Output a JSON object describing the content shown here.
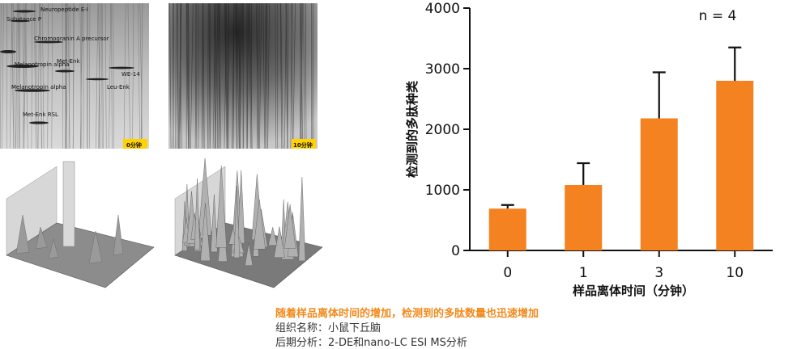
{
  "gel_panels": {
    "time_label_0": "0分钟",
    "time_label_10": "10分钟",
    "annotations": [
      "Neuropeptide E-I",
      "Substance P",
      "Chromogranin A precursor",
      "Met-Enk",
      "Melanotropin alpha",
      "WE-14",
      "Melanotropin alpha",
      "Leu-Enk",
      "Met-Enk RSL"
    ]
  },
  "chart_data": {
    "type": "bar",
    "categories": [
      "0",
      "1",
      "3",
      "10"
    ],
    "values": [
      690,
      1080,
      2180,
      2800
    ],
    "error_upper": [
      750,
      1440,
      2940,
      3350
    ],
    "ylabel": "检测到的多肽种类",
    "xlabel": "样品离体时间（分钟）",
    "ylim": [
      0,
      4000
    ],
    "yticks": [
      "0",
      "1000",
      "2000",
      "3000",
      "4000"
    ],
    "annotation": "n = 4",
    "bar_color": "#f58220"
  },
  "captions": {
    "headline": "随着样品离体时间的增加，检测到的多肽数量也迅速增加",
    "tissue": "组织名称：小鼠下丘脑",
    "analysis": "后期分析：2-DE和nano-LC ESI MS分析"
  }
}
